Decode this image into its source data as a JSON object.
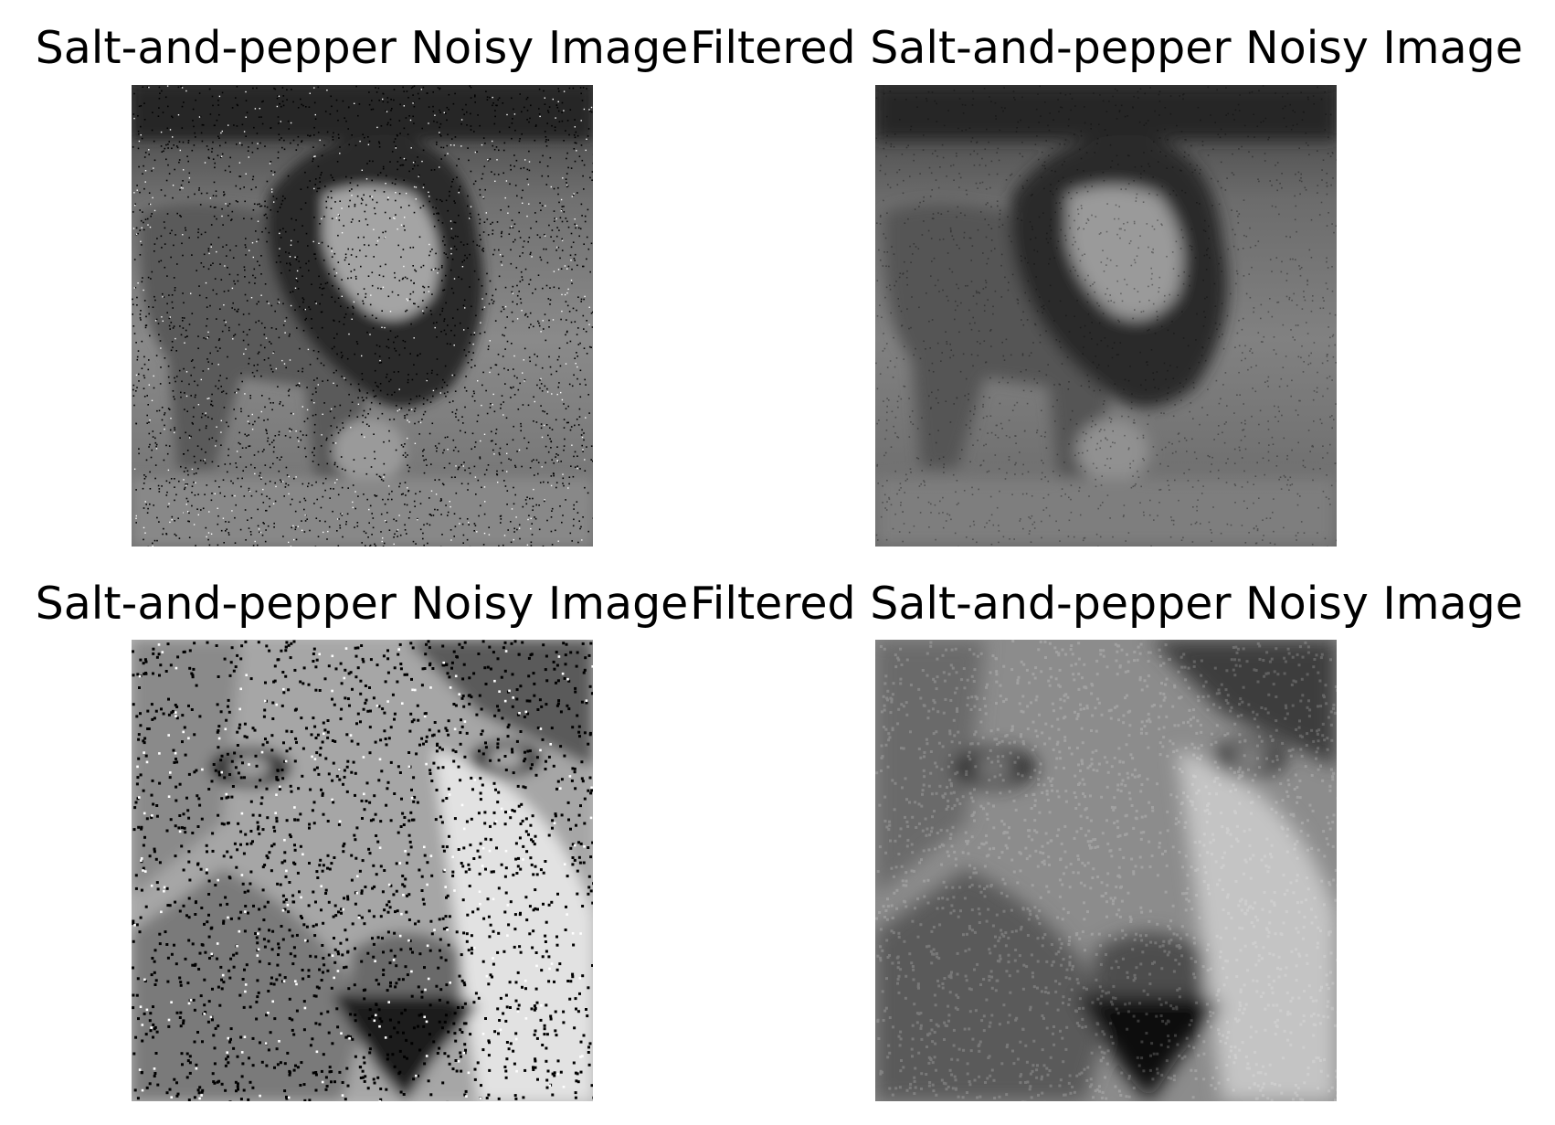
{
  "panels": [
    {
      "title": "Salt-and-pepper Noisy Image",
      "content": "lion-full-noisy"
    },
    {
      "title": "Filtered Salt-and-pepper Noisy Image",
      "content": "lion-full-filtered"
    },
    {
      "title": "Salt-and-pepper Noisy Image",
      "content": "lion-face-noisy"
    },
    {
      "title": "Filtered Salt-and-pepper Noisy Image",
      "content": "lion-face-filtered"
    }
  ]
}
